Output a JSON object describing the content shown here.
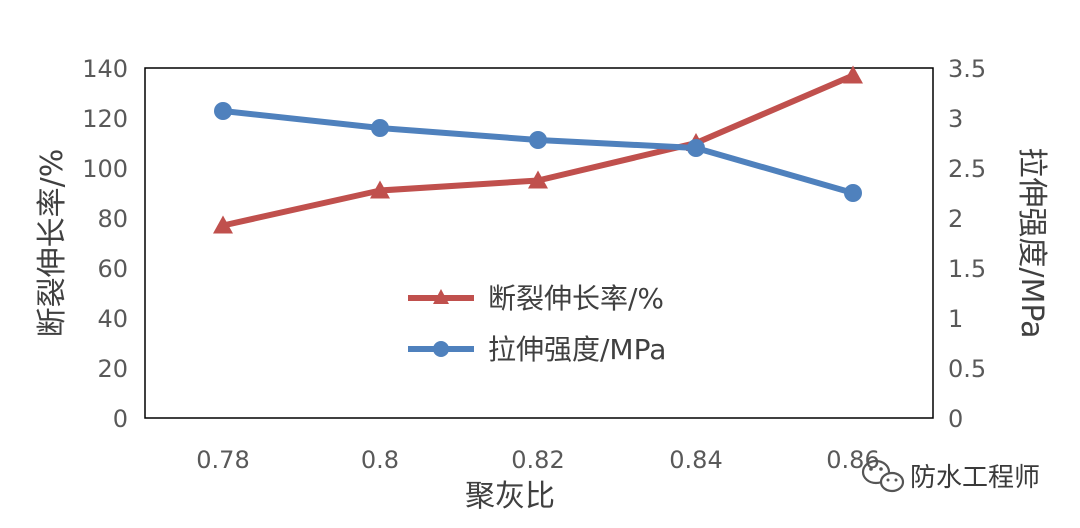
{
  "chart_data": {
    "type": "line",
    "categories": [
      "0.78",
      "0.8",
      "0.82",
      "0.84",
      "0.86"
    ],
    "xlabel": "聚灰比",
    "ylabel_left": "断裂伸长率/%",
    "ylabel_right": "拉伸强度/MPa",
    "ylim_left": [
      0,
      140
    ],
    "ylim_right": [
      0,
      3.5
    ],
    "yticks_left": [
      "0",
      "20",
      "40",
      "60",
      "80",
      "100",
      "120",
      "140"
    ],
    "yticks_right": [
      "0",
      "0.5",
      "1",
      "1.5",
      "2",
      "2.5",
      "3",
      "3.5"
    ],
    "grid": false,
    "legend_position": "center",
    "series": [
      {
        "name": "断裂伸长率/%",
        "axis": "left",
        "marker": "triangle",
        "color": "#C0504D",
        "values": [
          77,
          91,
          95,
          110,
          137
        ]
      },
      {
        "name": "拉伸强度/MPa",
        "axis": "right",
        "marker": "circle",
        "color": "#4F81BD",
        "values": [
          3.07,
          2.9,
          2.78,
          2.7,
          2.25
        ]
      }
    ]
  },
  "watermark": {
    "text": "防水工程师",
    "icon": "wechat-icon"
  }
}
